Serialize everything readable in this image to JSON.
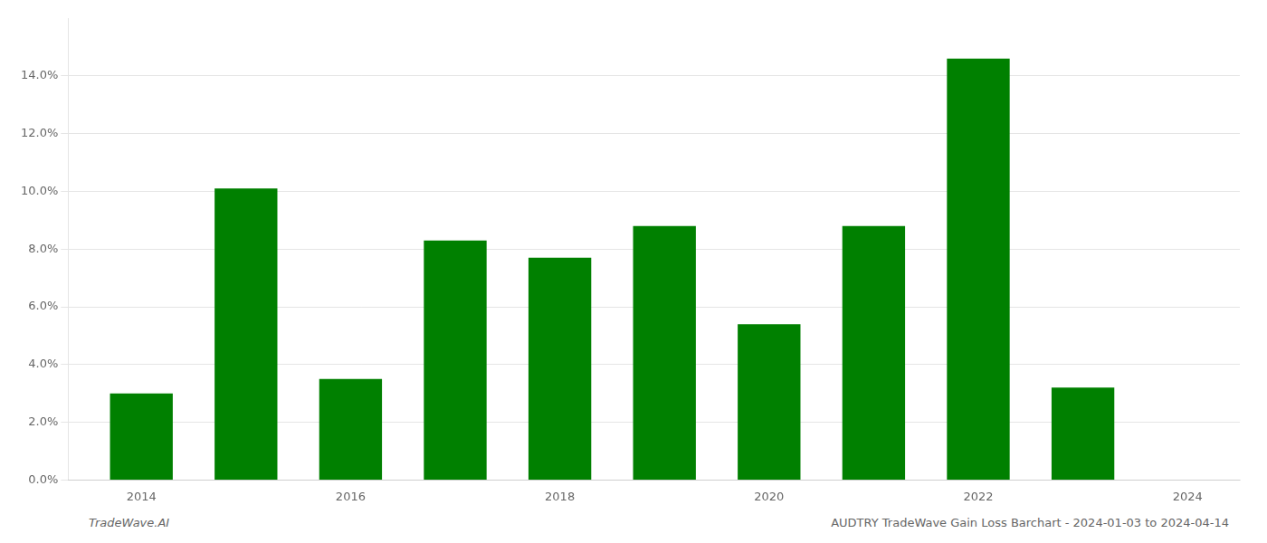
{
  "chart_data": {
    "type": "bar",
    "x": [
      2014,
      2015,
      2016,
      2017,
      2018,
      2019,
      2020,
      2021,
      2022,
      2023
    ],
    "values": [
      0.03,
      0.101,
      0.035,
      0.083,
      0.077,
      0.088,
      0.054,
      0.088,
      0.146,
      0.032
    ],
    "color": "#008000",
    "xlim": [
      2013.3,
      2024.5
    ],
    "xticks": [
      2014,
      2016,
      2018,
      2020,
      2022,
      2024
    ],
    "ylim": [
      0,
      0.16
    ],
    "yticks": [
      {
        "value": 0.0,
        "label": "0.0%"
      },
      {
        "value": 0.02,
        "label": "2.0%"
      },
      {
        "value": 0.04,
        "label": "4.0%"
      },
      {
        "value": 0.06,
        "label": "6.0%"
      },
      {
        "value": 0.08,
        "label": "8.0%"
      },
      {
        "value": 0.1,
        "label": "10.0%"
      },
      {
        "value": 0.12,
        "label": "12.0%"
      },
      {
        "value": 0.14,
        "label": "14.0%"
      }
    ],
    "grid": true,
    "annotations": [
      "TradeWave.AI",
      "AUDTRY TradeWave Gain Loss Barchart - 2024-01-03 to 2024-04-14"
    ]
  }
}
